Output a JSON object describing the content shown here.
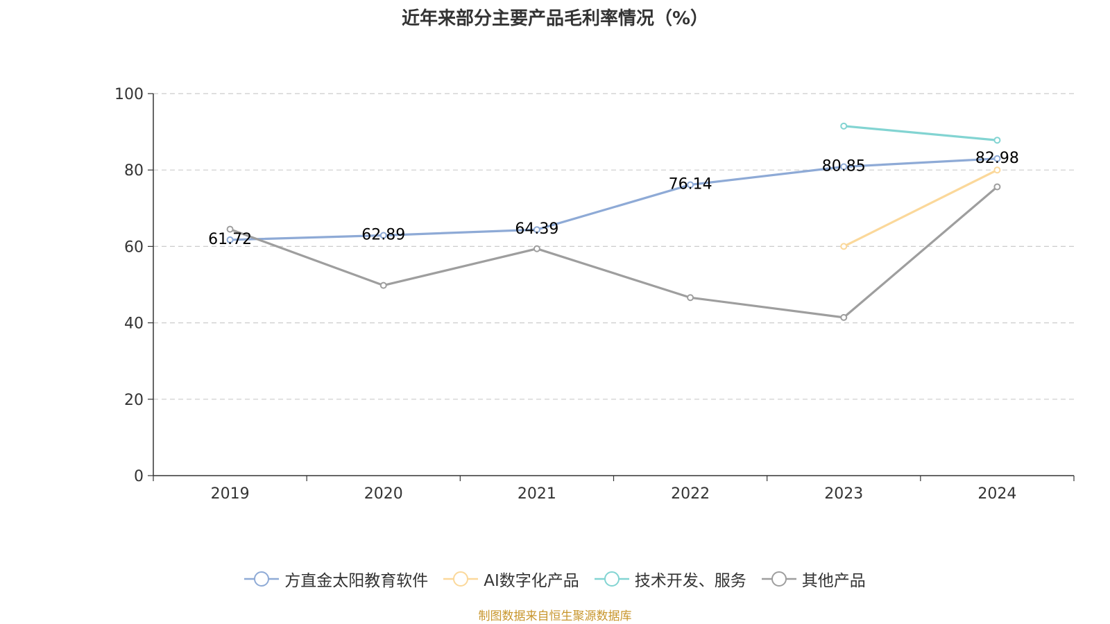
{
  "chart_data": {
    "type": "line",
    "title": "近年来部分主要产品毛利率情况（%）",
    "categories": [
      "2019",
      "2020",
      "2021",
      "2022",
      "2023",
      "2024"
    ],
    "ylim": [
      0,
      100
    ],
    "yticks": [
      0,
      20,
      40,
      60,
      80,
      100
    ],
    "grid": true,
    "legend_position": "bottom",
    "series": [
      {
        "name": "方直金太阳教育软件",
        "color": "#8eaad6",
        "values": [
          61.72,
          62.89,
          64.39,
          76.14,
          80.85,
          82.98
        ],
        "labels": [
          "61.72",
          "62.89",
          "64.39",
          "76.14",
          "80.85",
          "82.98"
        ]
      },
      {
        "name": "AI数字化产品",
        "color": "#fbd89a",
        "values": [
          null,
          null,
          null,
          null,
          60.0,
          80.0
        ]
      },
      {
        "name": "技术开发、服务",
        "color": "#82d4d2",
        "values": [
          null,
          null,
          null,
          null,
          91.5,
          87.8
        ]
      },
      {
        "name": "其他产品",
        "color": "#9e9e9e",
        "values": [
          64.5,
          49.8,
          59.4,
          46.6,
          41.4,
          75.6
        ]
      }
    ],
    "source": "制图数据来自恒生聚源数据库"
  }
}
